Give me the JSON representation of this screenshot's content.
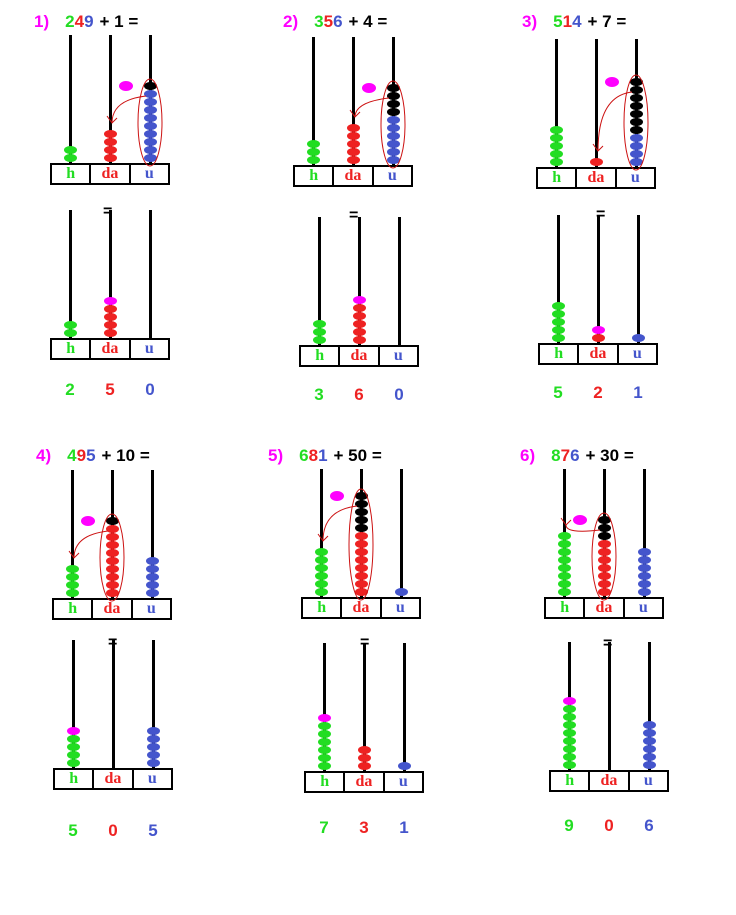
{
  "colors": {
    "hundreds": "#22dd22",
    "tens": "#ee2222",
    "units": "#4455cc",
    "carried": "#000000",
    "new_bead": "#ff00ff",
    "number_label": "#ff00ff",
    "frame": "#000000"
  },
  "column_labels": {
    "h": "h",
    "da": "da",
    "u": "u"
  },
  "equals_sign": "=",
  "problems": [
    {
      "index_label": "1)",
      "digits": [
        "2",
        "4",
        "9"
      ],
      "addend_text": "+ 1 =",
      "top_beads": {
        "h": [
          2,
          0
        ],
        "da": [
          4,
          0
        ],
        "u": [
          9,
          1
        ]
      },
      "new_bead_column": "u",
      "grouped_column": "u",
      "bottom_beads": {
        "h": 2,
        "da": 5,
        "u": 0
      },
      "bottom_new_column": "da",
      "result": [
        "2",
        "5",
        "0"
      ]
    },
    {
      "index_label": "2)",
      "digits": [
        "3",
        "5",
        "6"
      ],
      "addend_text": "+ 4 =",
      "top_beads": {
        "h": [
          3,
          0
        ],
        "da": [
          5,
          0
        ],
        "u": [
          6,
          4
        ]
      },
      "new_bead_column": "u",
      "grouped_column": "u",
      "bottom_beads": {
        "h": 3,
        "da": 6,
        "u": 0
      },
      "bottom_new_column": "da",
      "result": [
        "3",
        "6",
        "0"
      ]
    },
    {
      "index_label": "3)",
      "digits": [
        "5",
        "1",
        "4"
      ],
      "addend_text": "+ 7 =",
      "top_beads": {
        "h": [
          5,
          0
        ],
        "da": [
          1,
          0
        ],
        "u": [
          4,
          7
        ]
      },
      "new_bead_column": "u",
      "grouped_column": "u",
      "bottom_beads": {
        "h": 5,
        "da": 2,
        "u": 1
      },
      "bottom_new_column": "da",
      "result": [
        "5",
        "2",
        "1"
      ]
    },
    {
      "index_label": "4)",
      "digits": [
        "4",
        "9",
        "5"
      ],
      "addend_text": "+ 10 =",
      "top_beads": {
        "h": [
          4,
          0
        ],
        "da": [
          9,
          1
        ],
        "u": [
          5,
          0
        ]
      },
      "new_bead_column": "da",
      "grouped_column": "da",
      "bottom_beads": {
        "h": 5,
        "da": 0,
        "u": 5
      },
      "bottom_new_column": "h",
      "result": [
        "5",
        "0",
        "5"
      ]
    },
    {
      "index_label": "5)",
      "digits": [
        "6",
        "8",
        "1"
      ],
      "addend_text": "+ 50 =",
      "top_beads": {
        "h": [
          6,
          0
        ],
        "da": [
          8,
          5
        ],
        "u": [
          1,
          0
        ]
      },
      "new_bead_column": "da",
      "grouped_column": "da",
      "bottom_beads": {
        "h": 7,
        "da": 3,
        "u": 1
      },
      "bottom_new_column": "h",
      "result": [
        "7",
        "3",
        "1"
      ]
    },
    {
      "index_label": "6)",
      "digits": [
        "8",
        "7",
        "6"
      ],
      "addend_text": "+ 30 =",
      "top_beads": {
        "h": [
          8,
          0
        ],
        "da": [
          7,
          3
        ],
        "u": [
          6,
          0
        ]
      },
      "new_bead_column": "da",
      "grouped_column": "da",
      "bottom_beads": {
        "h": 9,
        "da": 0,
        "u": 6
      },
      "bottom_new_column": "h",
      "result": [
        "9",
        "0",
        "6"
      ]
    }
  ]
}
